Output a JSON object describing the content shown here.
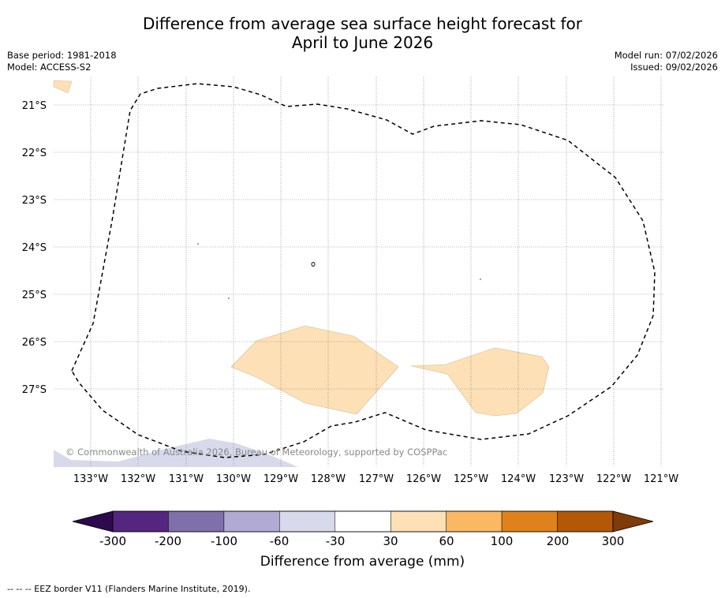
{
  "title": {
    "line1": "Difference from average sea surface height forecast for",
    "line2": "April to June 2026"
  },
  "meta": {
    "base_period": "Base period: 1981-2018",
    "model": "Model: ACCESS-S2",
    "model_run": "Model run: 07/02/2026",
    "issued": "Issued: 09/02/2026"
  },
  "map": {
    "lat_labels": [
      "21°S",
      "22°S",
      "23°S",
      "24°S",
      "25°S",
      "26°S",
      "27°S"
    ],
    "lon_labels": [
      "133°W",
      "132°W",
      "131°W",
      "130°W",
      "129°W",
      "128°W",
      "127°W",
      "126°W",
      "125°W",
      "124°W",
      "123°W",
      "122°W",
      "121°W"
    ],
    "copyright": "© Commonwealth of Australia 2026, Bureau of Meteorology, supported by COSPPac"
  },
  "colorbar": {
    "title": "Difference from average (mm)",
    "tick_labels": [
      "-300",
      "-200",
      "-100",
      "-60",
      "-30",
      "30",
      "60",
      "100",
      "200",
      "300"
    ],
    "colors": {
      "under": "#2d0a4e",
      "bins": [
        "#54267f",
        "#7f70ab",
        "#b1abd3",
        "#d9d9ec",
        "#ffffff",
        "#fde0b6",
        "#fbb862",
        "#e0821b",
        "#b35806"
      ],
      "over": "#7f3b08"
    }
  },
  "footer": "--  --  -- EEZ border V11 (Flanders Marine Institute, 2019)."
}
